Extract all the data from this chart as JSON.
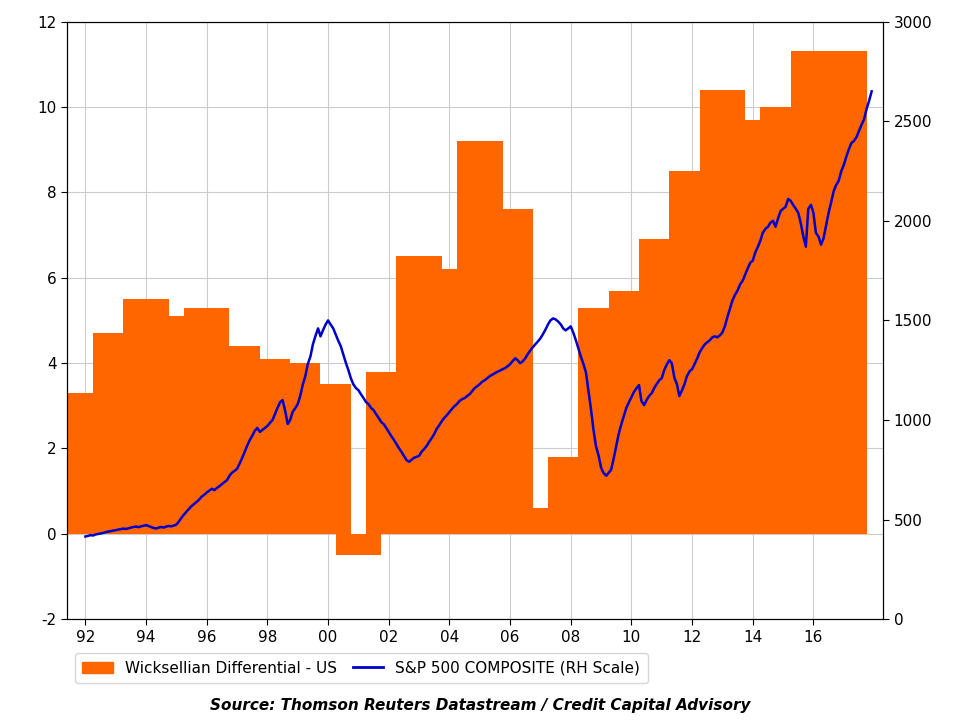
{
  "bar_years": [
    1992,
    1993,
    1994,
    1995,
    1996,
    1997,
    1998,
    1999,
    2000,
    2001,
    2002,
    2003,
    2004,
    2005,
    2006,
    2007,
    2008,
    2009,
    2010,
    2011,
    2012,
    2013,
    2014,
    2015,
    2016,
    2017
  ],
  "bar_values": [
    3.3,
    4.7,
    5.5,
    5.1,
    5.3,
    4.4,
    4.1,
    4.0,
    3.5,
    -0.5,
    3.8,
    6.5,
    6.2,
    9.2,
    7.6,
    0.6,
    1.8,
    5.3,
    5.7,
    6.9,
    8.5,
    10.4,
    9.7,
    10.0,
    11.3,
    11.3
  ],
  "sp500_x": [
    1992.0,
    1992.08,
    1992.17,
    1992.25,
    1992.33,
    1992.42,
    1992.5,
    1992.58,
    1992.67,
    1992.75,
    1992.83,
    1992.92,
    1993.0,
    1993.08,
    1993.17,
    1993.25,
    1993.33,
    1993.42,
    1993.5,
    1993.58,
    1993.67,
    1993.75,
    1993.83,
    1993.92,
    1994.0,
    1994.08,
    1994.17,
    1994.25,
    1994.33,
    1994.42,
    1994.5,
    1994.58,
    1994.67,
    1994.75,
    1994.83,
    1994.92,
    1995.0,
    1995.08,
    1995.17,
    1995.25,
    1995.33,
    1995.42,
    1995.5,
    1995.58,
    1995.67,
    1995.75,
    1995.83,
    1995.92,
    1996.0,
    1996.08,
    1996.17,
    1996.25,
    1996.33,
    1996.42,
    1996.5,
    1996.58,
    1996.67,
    1996.75,
    1996.83,
    1996.92,
    1997.0,
    1997.08,
    1997.17,
    1997.25,
    1997.33,
    1997.42,
    1997.5,
    1997.58,
    1997.67,
    1997.75,
    1997.83,
    1997.92,
    1998.0,
    1998.08,
    1998.17,
    1998.25,
    1998.33,
    1998.42,
    1998.5,
    1998.58,
    1998.67,
    1998.75,
    1998.83,
    1998.92,
    1999.0,
    1999.08,
    1999.17,
    1999.25,
    1999.33,
    1999.42,
    1999.5,
    1999.58,
    1999.67,
    1999.75,
    1999.83,
    1999.92,
    2000.0,
    2000.08,
    2000.17,
    2000.25,
    2000.33,
    2000.42,
    2000.5,
    2000.58,
    2000.67,
    2000.75,
    2000.83,
    2000.92,
    2001.0,
    2001.08,
    2001.17,
    2001.25,
    2001.33,
    2001.42,
    2001.5,
    2001.58,
    2001.67,
    2001.75,
    2001.83,
    2001.92,
    2002.0,
    2002.08,
    2002.17,
    2002.25,
    2002.33,
    2002.42,
    2002.5,
    2002.58,
    2002.67,
    2002.75,
    2002.83,
    2002.92,
    2003.0,
    2003.08,
    2003.17,
    2003.25,
    2003.33,
    2003.42,
    2003.5,
    2003.58,
    2003.67,
    2003.75,
    2003.83,
    2003.92,
    2004.0,
    2004.08,
    2004.17,
    2004.25,
    2004.33,
    2004.42,
    2004.5,
    2004.58,
    2004.67,
    2004.75,
    2004.83,
    2004.92,
    2005.0,
    2005.08,
    2005.17,
    2005.25,
    2005.33,
    2005.42,
    2005.5,
    2005.58,
    2005.67,
    2005.75,
    2005.83,
    2005.92,
    2006.0,
    2006.08,
    2006.17,
    2006.25,
    2006.33,
    2006.42,
    2006.5,
    2006.58,
    2006.67,
    2006.75,
    2006.83,
    2006.92,
    2007.0,
    2007.08,
    2007.17,
    2007.25,
    2007.33,
    2007.42,
    2007.5,
    2007.58,
    2007.67,
    2007.75,
    2007.83,
    2007.92,
    2008.0,
    2008.08,
    2008.17,
    2008.25,
    2008.33,
    2008.42,
    2008.5,
    2008.58,
    2008.67,
    2008.75,
    2008.83,
    2008.92,
    2009.0,
    2009.08,
    2009.17,
    2009.25,
    2009.33,
    2009.42,
    2009.5,
    2009.58,
    2009.67,
    2009.75,
    2009.83,
    2009.92,
    2010.0,
    2010.08,
    2010.17,
    2010.25,
    2010.33,
    2010.42,
    2010.5,
    2010.58,
    2010.67,
    2010.75,
    2010.83,
    2010.92,
    2011.0,
    2011.08,
    2011.17,
    2011.25,
    2011.33,
    2011.42,
    2011.5,
    2011.58,
    2011.67,
    2011.75,
    2011.83,
    2011.92,
    2012.0,
    2012.08,
    2012.17,
    2012.25,
    2012.33,
    2012.42,
    2012.5,
    2012.58,
    2012.67,
    2012.75,
    2012.83,
    2012.92,
    2013.0,
    2013.08,
    2013.17,
    2013.25,
    2013.33,
    2013.42,
    2013.5,
    2013.58,
    2013.67,
    2013.75,
    2013.83,
    2013.92,
    2014.0,
    2014.08,
    2014.17,
    2014.25,
    2014.33,
    2014.42,
    2014.5,
    2014.58,
    2014.67,
    2014.75,
    2014.83,
    2014.92,
    2015.0,
    2015.08,
    2015.17,
    2015.25,
    2015.33,
    2015.42,
    2015.5,
    2015.58,
    2015.67,
    2015.75,
    2015.83,
    2015.92,
    2016.0,
    2016.08,
    2016.17,
    2016.25,
    2016.33,
    2016.42,
    2016.5,
    2016.58,
    2016.67,
    2016.75,
    2016.83,
    2016.92,
    2017.0,
    2017.08,
    2017.17,
    2017.25,
    2017.33,
    2017.42,
    2017.5,
    2017.58,
    2017.67,
    2017.75,
    2017.83,
    2017.92
  ],
  "sp500_y": [
    415,
    418,
    422,
    420,
    425,
    428,
    430,
    433,
    437,
    440,
    442,
    445,
    447,
    450,
    452,
    455,
    453,
    456,
    460,
    463,
    465,
    462,
    466,
    469,
    472,
    468,
    462,
    458,
    455,
    460,
    463,
    460,
    465,
    468,
    466,
    470,
    475,
    490,
    510,
    525,
    540,
    555,
    568,
    578,
    590,
    600,
    615,
    625,
    636,
    645,
    655,
    648,
    658,
    668,
    678,
    688,
    698,
    720,
    735,
    745,
    755,
    780,
    810,
    840,
    870,
    900,
    920,
    945,
    960,
    940,
    950,
    960,
    970,
    985,
    1000,
    1030,
    1060,
    1090,
    1100,
    1050,
    980,
    1000,
    1040,
    1060,
    1080,
    1120,
    1180,
    1220,
    1280,
    1320,
    1380,
    1420,
    1460,
    1420,
    1450,
    1480,
    1500,
    1480,
    1460,
    1430,
    1400,
    1370,
    1330,
    1290,
    1250,
    1210,
    1180,
    1160,
    1150,
    1130,
    1110,
    1090,
    1080,
    1060,
    1050,
    1030,
    1010,
    990,
    980,
    960,
    940,
    920,
    900,
    880,
    860,
    840,
    820,
    800,
    790,
    800,
    810,
    815,
    820,
    840,
    855,
    870,
    890,
    910,
    930,
    955,
    975,
    995,
    1010,
    1025,
    1040,
    1055,
    1070,
    1080,
    1095,
    1105,
    1110,
    1120,
    1130,
    1145,
    1160,
    1170,
    1180,
    1192,
    1200,
    1210,
    1220,
    1228,
    1235,
    1242,
    1248,
    1255,
    1260,
    1270,
    1280,
    1295,
    1310,
    1300,
    1285,
    1295,
    1310,
    1330,
    1350,
    1365,
    1380,
    1395,
    1410,
    1430,
    1455,
    1480,
    1500,
    1510,
    1505,
    1495,
    1480,
    1460,
    1450,
    1460,
    1470,
    1440,
    1400,
    1360,
    1320,
    1280,
    1240,
    1150,
    1050,
    950,
    870,
    820,
    760,
    735,
    720,
    735,
    750,
    810,
    870,
    930,
    980,
    1020,
    1060,
    1090,
    1115,
    1140,
    1160,
    1175,
    1095,
    1075,
    1100,
    1120,
    1135,
    1160,
    1180,
    1200,
    1210,
    1250,
    1280,
    1300,
    1285,
    1210,
    1180,
    1120,
    1150,
    1180,
    1220,
    1245,
    1255,
    1280,
    1310,
    1340,
    1360,
    1380,
    1390,
    1400,
    1415,
    1420,
    1415,
    1425,
    1440,
    1470,
    1520,
    1560,
    1600,
    1630,
    1650,
    1680,
    1700,
    1730,
    1760,
    1790,
    1800,
    1840,
    1870,
    1900,
    1940,
    1960,
    1970,
    1990,
    2000,
    1970,
    2010,
    2050,
    2060,
    2070,
    2110,
    2100,
    2080,
    2060,
    2040,
    1990,
    1920,
    1870,
    2060,
    2080,
    2040,
    1940,
    1920,
    1880,
    1910,
    1980,
    2040,
    2090,
    2150,
    2180,
    2200,
    2250,
    2280,
    2320,
    2360,
    2390,
    2400,
    2420,
    2450,
    2480,
    2510,
    2560,
    2600,
    2650
  ],
  "bar_color": "#FF6600",
  "line_color": "#0000CC",
  "background_color": "#FFFFFF",
  "grid_color": "#CCCCCC",
  "ylim_left": [
    -2,
    12
  ],
  "ylim_right": [
    0,
    3000
  ],
  "xlim": [
    1991.4,
    2018.3
  ],
  "xtick_labels": [
    "92",
    "94",
    "96",
    "98",
    "00",
    "02",
    "04",
    "06",
    "08",
    "10",
    "12",
    "14",
    "16"
  ],
  "xtick_positions": [
    1992,
    1994,
    1996,
    1998,
    2000,
    2002,
    2004,
    2006,
    2008,
    2010,
    2012,
    2014,
    2016
  ],
  "ytick_left": [
    -2,
    0,
    2,
    4,
    6,
    8,
    10,
    12
  ],
  "ytick_right": [
    0,
    500,
    1000,
    1500,
    2000,
    2500,
    3000
  ],
  "legend_label_bar": "Wicksellian Differential - US",
  "legend_label_line": "S&P 500 COMPOSITE (RH Scale)",
  "source_text": "Source: Thomson Reuters Datastream / Credit Capital Advisory",
  "bar_width": 1.5
}
